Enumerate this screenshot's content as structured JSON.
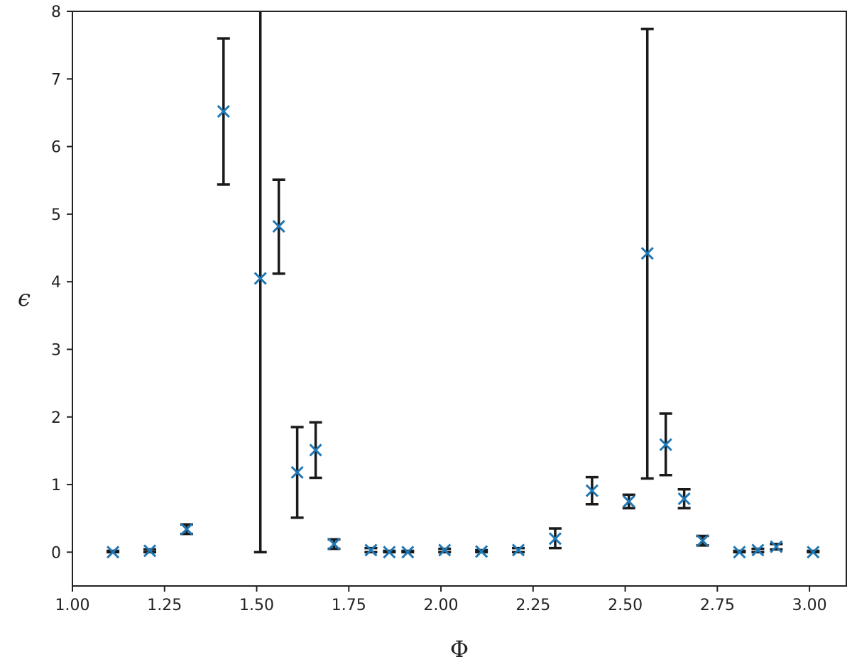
{
  "chart_data": {
    "type": "scatter",
    "title": "",
    "xlabel": "Φ",
    "ylabel": "ϵ",
    "xlim": [
      1.0,
      3.1
    ],
    "ylim": [
      -0.5,
      8.0
    ],
    "xticks": [
      1.0,
      1.25,
      1.5,
      1.75,
      2.0,
      2.25,
      2.5,
      2.75,
      3.0
    ],
    "xtick_labels": [
      "1.00",
      "1.25",
      "1.50",
      "1.75",
      "2.00",
      "2.25",
      "2.50",
      "2.75",
      "3.00"
    ],
    "yticks": [
      0,
      1,
      2,
      3,
      4,
      5,
      6,
      7,
      8
    ],
    "ytick_labels": [
      "0",
      "1",
      "2",
      "3",
      "4",
      "5",
      "6",
      "7",
      "8"
    ],
    "grid": false,
    "marker": "x",
    "marker_color": "#1f77b4",
    "errorbar_color": "#1a1a1a",
    "points": [
      {
        "x": 1.11,
        "y": 0.0,
        "lo": 0.0,
        "hi": 0.02
      },
      {
        "x": 1.21,
        "y": 0.02,
        "lo": 0.0,
        "hi": 0.04
      },
      {
        "x": 1.31,
        "y": 0.34,
        "lo": 0.27,
        "hi": 0.41
      },
      {
        "x": 1.41,
        "y": 6.52,
        "lo": 5.44,
        "hi": 7.6
      },
      {
        "x": 1.51,
        "y": 4.05,
        "lo": 0.0,
        "hi": 8.1
      },
      {
        "x": 1.56,
        "y": 4.82,
        "lo": 4.12,
        "hi": 5.51
      },
      {
        "x": 1.61,
        "y": 1.18,
        "lo": 0.51,
        "hi": 1.85
      },
      {
        "x": 1.66,
        "y": 1.51,
        "lo": 1.1,
        "hi": 1.92
      },
      {
        "x": 1.71,
        "y": 0.12,
        "lo": 0.05,
        "hi": 0.19
      },
      {
        "x": 1.81,
        "y": 0.03,
        "lo": 0.0,
        "hi": 0.06
      },
      {
        "x": 1.86,
        "y": 0.0,
        "lo": 0.0,
        "hi": 0.02
      },
      {
        "x": 1.91,
        "y": 0.0,
        "lo": 0.0,
        "hi": 0.02
      },
      {
        "x": 2.01,
        "y": 0.03,
        "lo": 0.0,
        "hi": 0.05
      },
      {
        "x": 2.11,
        "y": 0.01,
        "lo": 0.0,
        "hi": 0.03
      },
      {
        "x": 2.21,
        "y": 0.03,
        "lo": 0.0,
        "hi": 0.06
      },
      {
        "x": 2.31,
        "y": 0.2,
        "lo": 0.06,
        "hi": 0.35
      },
      {
        "x": 2.41,
        "y": 0.91,
        "lo": 0.71,
        "hi": 1.11
      },
      {
        "x": 2.51,
        "y": 0.75,
        "lo": 0.65,
        "hi": 0.85
      },
      {
        "x": 2.56,
        "y": 4.42,
        "lo": 1.09,
        "hi": 7.74
      },
      {
        "x": 2.61,
        "y": 1.59,
        "lo": 1.14,
        "hi": 2.05
      },
      {
        "x": 2.66,
        "y": 0.79,
        "lo": 0.65,
        "hi": 0.93
      },
      {
        "x": 2.71,
        "y": 0.17,
        "lo": 0.1,
        "hi": 0.24
      },
      {
        "x": 2.81,
        "y": 0.0,
        "lo": 0.0,
        "hi": 0.02
      },
      {
        "x": 2.86,
        "y": 0.03,
        "lo": 0.0,
        "hi": 0.05
      },
      {
        "x": 2.91,
        "y": 0.08,
        "lo": 0.04,
        "hi": 0.12
      },
      {
        "x": 3.01,
        "y": 0.0,
        "lo": 0.0,
        "hi": 0.02
      }
    ]
  }
}
